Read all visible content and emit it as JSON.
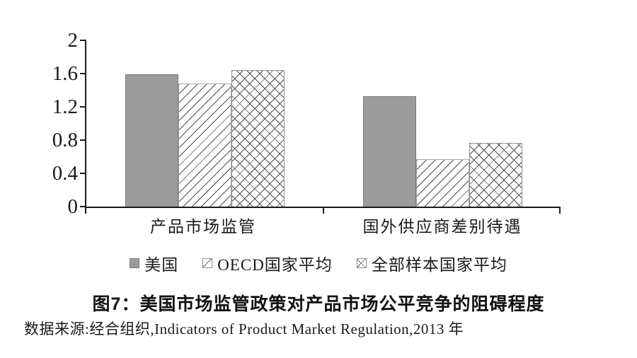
{
  "chart_data": {
    "type": "bar",
    "title": "图7：美国市场监管政策对产品市场公平竞争的阻碍程度",
    "source_note": "数据来源:经合组织,Indicators of Product Market Regulation,2013 年",
    "categories": [
      "产品市场监管",
      "国外供应商差别待遇"
    ],
    "series": [
      {
        "name": "美国",
        "style": "solid-gray",
        "values": [
          1.59,
          1.33
        ]
      },
      {
        "name": "OECD国家平均",
        "style": "diagonal-hatch",
        "values": [
          1.48,
          0.57
        ]
      },
      {
        "name": "全部样本国家平均",
        "style": "cross-hatch",
        "values": [
          1.64,
          0.77
        ]
      }
    ],
    "ylim": [
      0,
      2
    ],
    "yticks": [
      "2",
      "1.6",
      "1.2",
      "0.8",
      "0.4",
      "0"
    ],
    "ytick_values": [
      2,
      1.6,
      1.2,
      0.8,
      0.4,
      0
    ],
    "grid": false,
    "legend_position": "bottom",
    "colors": {
      "bar_gray": "#9b9b9b",
      "bar_gray_border": "#7a7a7a",
      "hatch_line": "#4d4d4d",
      "hatch_border": "#8f8f8f",
      "axis": "#1a1a1a",
      "text": "#111111",
      "background": "#ffffff"
    }
  }
}
